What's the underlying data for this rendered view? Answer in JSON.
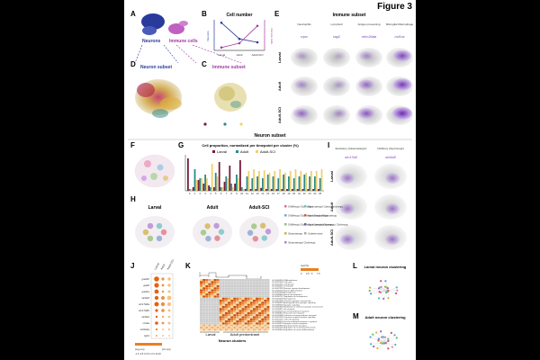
{
  "figure_title": "Figure 3",
  "colors": {
    "larval": "#7a1a3a",
    "adult": "#2a8a8a",
    "adult_sci": "#f0d070",
    "purple": "#7a3cc0",
    "neuron_blue": "#2a3a9a"
  },
  "panels": {
    "A": {
      "letter": "A",
      "label_neurons": "Neurons",
      "label_immune": "Immune cells"
    },
    "B": {
      "letter": "B",
      "title": "Cell number",
      "ylabel_left": "Neurons",
      "ylabel_right": "Immune cells",
      "xcats": [
        "Larval",
        "Adult",
        "Adult-SCI"
      ],
      "chart_data": {
        "type": "line",
        "title": "Cell number",
        "categories": [
          "Larval",
          "Adult",
          "Adult-SCI"
        ],
        "series": [
          {
            "name": "Neurons",
            "values": [
              4800,
              2000,
              1400
            ]
          },
          {
            "name": "Immune cells",
            "values": [
              400,
              1000,
              3400
            ]
          }
        ],
        "ylim_left": [
          0,
          5000
        ],
        "ylim_right": [
          0,
          4000
        ]
      }
    },
    "C": {
      "letter": "C",
      "subtitle": "Immune subset"
    },
    "D": {
      "letter": "D",
      "subtitle": "Neuron subset"
    },
    "legend_conditions": [
      "Larval",
      "Adult",
      "Adult-SCI"
    ],
    "E": {
      "letter": "E",
      "title": "Immune subset",
      "columns": [
        {
          "name": "Neutrophils",
          "gene": "mpx"
        },
        {
          "name": "Lymphoid",
          "gene": "rag2"
        },
        {
          "name": "Antigen presenting",
          "gene": "mhc2dab"
        },
        {
          "name": "Microglia/ Macrophage",
          "gene": "csf1ra"
        }
      ],
      "rows": [
        "Larval",
        "Adult",
        "Adult-SCI"
      ]
    },
    "section_title": "Neuron subset",
    "F": {
      "letter": "F"
    },
    "G": {
      "letter": "G",
      "title": "Cell proportion, normalized per timepoint per cluster (%)",
      "legend": [
        "Larval",
        "Adult",
        "Adult-SCI"
      ],
      "chart_data": {
        "type": "bar",
        "title": "Cell proportion, normalized per timepoint per cluster (%)",
        "categories": [
          "0",
          "1",
          "2",
          "3",
          "4",
          "5",
          "6",
          "7",
          "8",
          "9",
          "10",
          "11",
          "12",
          "13",
          "14",
          "15",
          "16",
          "17",
          "18",
          "19",
          "20",
          "21",
          "22",
          "23",
          "24",
          "25"
        ],
        "series": [
          {
            "name": "Larval",
            "values": [
              90,
              10,
              30,
              20,
              15,
              10,
              80,
              25,
              70,
              20,
              85,
              5,
              5,
              5,
              8,
              5,
              5,
              5,
              5,
              5,
              5,
              5,
              5,
              5,
              5,
              5
            ]
          },
          {
            "name": "Adult",
            "values": [
              5,
              60,
              35,
              45,
              10,
              50,
              10,
              40,
              20,
              45,
              10,
              40,
              35,
              40,
              35,
              45,
              40,
              35,
              45,
              40,
              35,
              40,
              45,
              40,
              40,
              35
            ]
          },
          {
            "name": "Adult-SCI",
            "values": [
              5,
              30,
              35,
              35,
              75,
              40,
              10,
              35,
              10,
              35,
              5,
              55,
              60,
              55,
              57,
              50,
              55,
              60,
              50,
              55,
              60,
              55,
              50,
              55,
              55,
              60
            ]
          }
        ],
        "ylim": [
          0,
          100
        ]
      }
    },
    "H": {
      "letter": "H",
      "cols": [
        "Larval",
        "Adult",
        "Adult-SCI"
      ],
      "legend": [
        "GABAergic/ Glycinergic",
        "GABAergic/ Glycinergic/ Glutamatergic",
        "GABAergic/ Glycinergic/ Catecholaminergic",
        "Glutamatergic",
        "Glutamatergic/ Cholinergic",
        "Glutamatergic/ Catecholaminergic",
        "Serotonergic/ Glutamatergic",
        "Glutamatergic/ Glycinergic/ Cholinergic",
        "Undetermined"
      ]
    },
    "I": {
      "letter": "I",
      "cols": [
        {
          "name": "Excitatory (Glutamatergic)",
          "gene": "slc17a6"
        },
        {
          "name": "Inhibitory (Glycinergic)",
          "gene": "slc6a5"
        }
      ],
      "rows": [
        "Larval",
        "Adult",
        "Adult-SCI"
      ]
    },
    "J": {
      "letter": "J",
      "cols": [
        "Larval",
        "Adult",
        "Adult-SCI"
      ],
      "genes": [
        "gad1b",
        "gad2",
        "gad1a",
        "slc6a5",
        "slc17a6a",
        "slc17a6b",
        "slc6a2",
        "chata",
        "slc6a4a",
        "tph2"
      ],
      "scale_label_left": "avg.exp",
      "scale_label_right": "pct.exp",
      "scale_ticks": "-1.0 -0.5 0 0.5 1.0 0 10 20"
    },
    "K": {
      "letter": "K",
      "colorbar_label": "rep(%)",
      "colorbar_ticks": [
        "0",
        "2.5",
        "5",
        "7.5"
      ],
      "xlabel": "Neuron clusters",
      "group_left": "Larval",
      "group_right": "Adult predominant",
      "terms": [
        "GO:0006260 DNA replication",
        "GO:0007049 Cell cycle",
        "GO:0051301 Cell division",
        "GO:0006412 Translation",
        "GO:0007399 Nervous system development",
        "GO:0030182 Neuron differentiation",
        "GO:0007409 Axonogenesis",
        "GO:0048666 Neuron development",
        "GO:0050767 Regulation of neurogenesis",
        "GO:0022008 Neurogenesis",
        "GO:0007268 Chemical synaptic transmission",
        "GO:0098916 Anterograde trans-synaptic signaling",
        "GO:0099536 Synaptic signaling",
        "GO:0050804 Modulation of chemical synaptic transmission",
        "GO:0006811 Ion transport",
        "GO:0034220 Ion transmembrane transport",
        "GO:0006813 Potassium ion transport",
        "GO:0070588 Calcium ion transmembrane transport",
        "GO:0007186 G protein-coupled receptor signaling",
        "GO:0007267 Cell-cell signaling",
        "GO:0099003 Vesicle-mediated transport in synapse",
        "GO:0016079 Synaptic vesicle exocytosis",
        "GO:0006836 Neurotransmitter transport",
        "GO:0001505 Regulation of neurotransmitter levels",
        "GO:0045664 Regulation of neuron differentiation"
      ]
    },
    "L": {
      "letter": "L",
      "title": "Larval neuron clustering"
    },
    "M": {
      "letter": "M",
      "title": "Adult neuron clustering"
    }
  }
}
